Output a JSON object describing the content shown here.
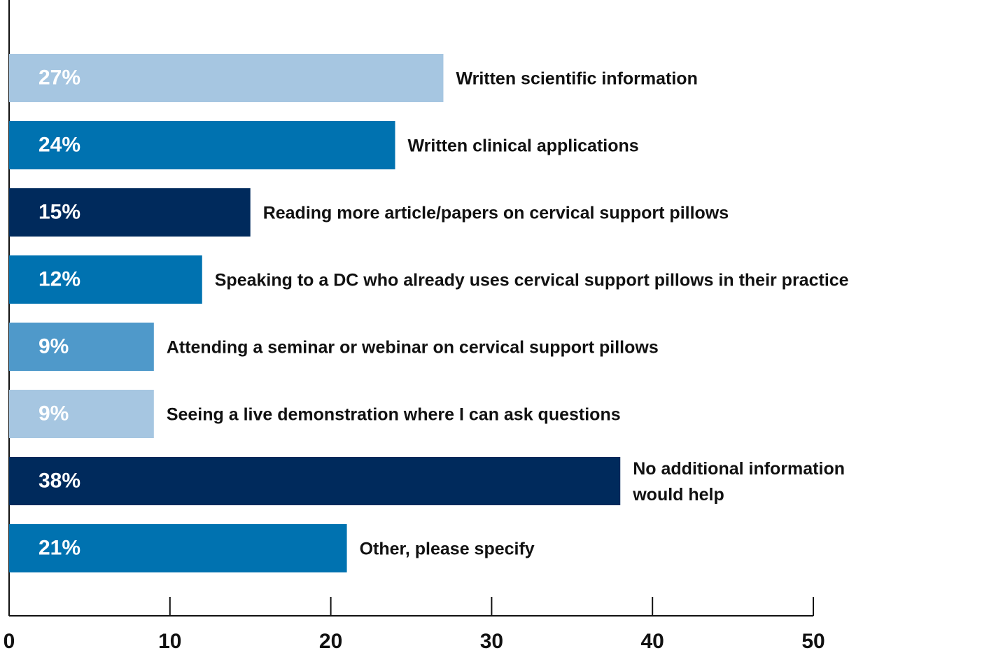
{
  "chart_data": {
    "type": "bar",
    "orientation": "horizontal",
    "categories": [
      "Written scientific information",
      "Written clinical applications",
      "Reading more article/papers on cervical support pillows",
      "Speaking to a DC who already uses cervical support pillows in their practice",
      "Attending a seminar or webinar on cervical support pillows",
      "Seeing a live demonstration where I can ask questions",
      "No additional information\nwould help",
      "Other, please specify"
    ],
    "values": [
      27,
      24,
      15,
      12,
      9,
      9,
      38,
      21
    ],
    "value_labels": [
      "27%",
      "24%",
      "15%",
      "12%",
      "9%",
      "9%",
      "38%",
      "21%"
    ],
    "colors": [
      "#a6c6e1",
      "#0072b0",
      "#002a5c",
      "#0072b0",
      "#4f99ca",
      "#a6c6e1",
      "#002a5c",
      "#0072b0"
    ],
    "xlim": [
      0,
      50
    ],
    "xticks": [
      0,
      10,
      20,
      30,
      40,
      50
    ]
  }
}
